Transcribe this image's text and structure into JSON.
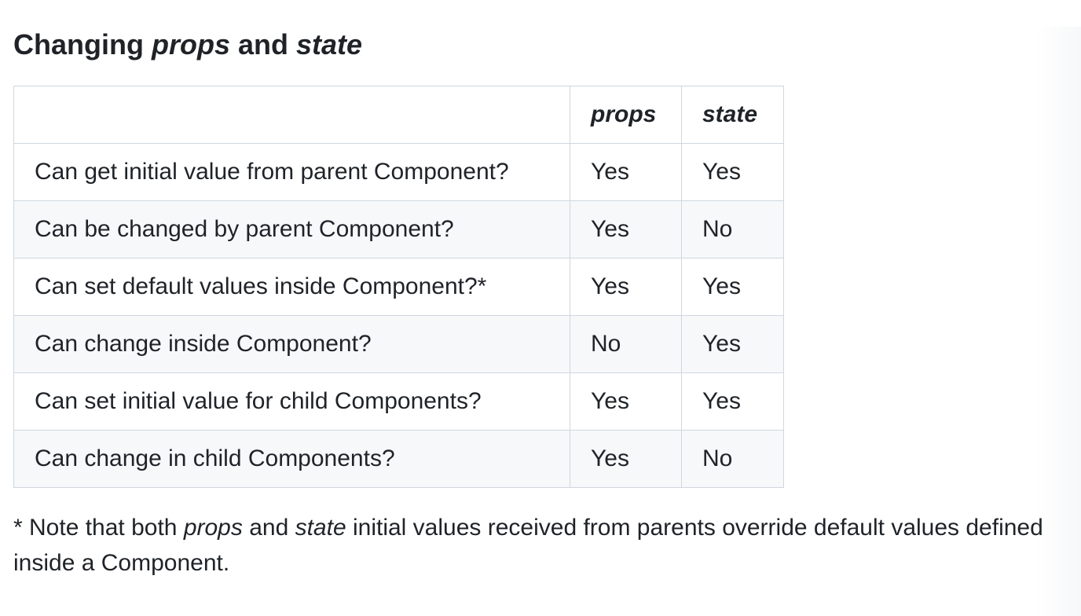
{
  "heading": {
    "text_start": "Changing ",
    "em1": "props",
    "text_mid": " and ",
    "em2": "state"
  },
  "table": {
    "columns": [
      {
        "label": ""
      },
      {
        "label": "props"
      },
      {
        "label": "state"
      }
    ],
    "rows": [
      {
        "cells": [
          "Can get initial value from parent Component?",
          "Yes",
          "Yes"
        ]
      },
      {
        "cells": [
          "Can be changed by parent Component?",
          "Yes",
          "No"
        ]
      },
      {
        "cells": [
          "Can set default values inside Component?*",
          "Yes",
          "Yes"
        ]
      },
      {
        "cells": [
          "Can change inside Component?",
          "No",
          "Yes"
        ]
      },
      {
        "cells": [
          "Can set initial value for child Components?",
          "Yes",
          "Yes"
        ]
      },
      {
        "cells": [
          "Can change in child Components?",
          "Yes",
          "No"
        ]
      }
    ]
  },
  "footnote": {
    "text_start": "* Note that both ",
    "em1": "props",
    "text_mid": " and ",
    "em2": "state",
    "text_end": " initial values received from parents override default values defined inside a Component."
  },
  "colors": {
    "text": "#1f2328",
    "table_border": "#d0d7de",
    "row_alt_background": "#f6f8fa",
    "page_background": "#ffffff"
  }
}
